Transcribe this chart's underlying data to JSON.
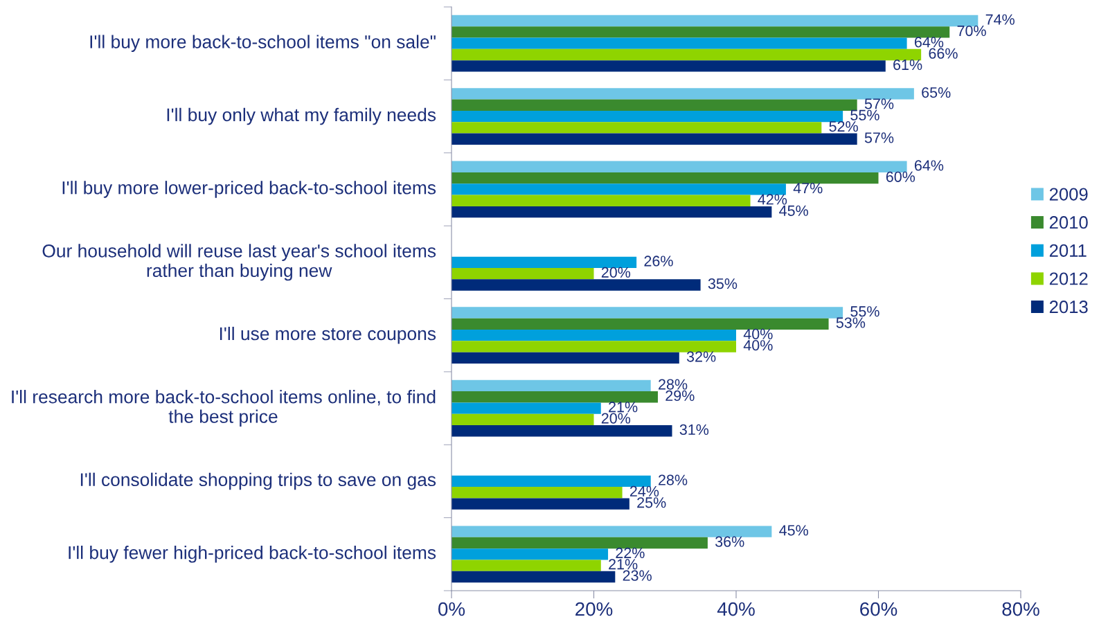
{
  "chart_data": {
    "type": "bar",
    "orientation": "horizontal",
    "categories": [
      "I'll buy more back-to-school items \"on sale\"",
      "I'll buy only what my family needs",
      "I'll buy more lower-priced back-to-school items",
      "Our household will reuse last year's school items rather than buying new",
      "I'll use more store coupons",
      "I'll research more back-to-school items online, to find the best price",
      "I'll consolidate shopping trips to save on gas",
      "I'll buy fewer high-priced back-to-school items"
    ],
    "series": [
      {
        "name": "2009",
        "color": "#6ec6e6",
        "values": [
          74,
          65,
          64,
          null,
          55,
          28,
          null,
          45
        ],
        "value_labels": [
          "74%",
          "65%",
          "64%",
          null,
          "55%",
          "28%",
          null,
          "45%"
        ]
      },
      {
        "name": "2010",
        "color": "#3a8a2e",
        "values": [
          70,
          57,
          60,
          null,
          53,
          29,
          null,
          36
        ],
        "value_labels": [
          "70%",
          "57%",
          "60%",
          null,
          "53%",
          "29%",
          null,
          "36%"
        ]
      },
      {
        "name": "2011",
        "color": "#00a0dc",
        "values": [
          64,
          55,
          47,
          26,
          40,
          21,
          28,
          22
        ],
        "value_labels": [
          "64%",
          "55%",
          "47%",
          "26%",
          "40%",
          "21%",
          "28%",
          "22%"
        ]
      },
      {
        "name": "2012",
        "color": "#8fd400",
        "values": [
          66,
          52,
          42,
          20,
          40,
          20,
          24,
          21
        ],
        "value_labels": [
          "66%",
          "52%",
          "42%",
          "20%",
          "40%",
          "20%",
          "24%",
          "21%"
        ]
      },
      {
        "name": "2013",
        "color": "#002b7a",
        "values": [
          61,
          57,
          45,
          35,
          32,
          31,
          25,
          23
        ],
        "value_labels": [
          "61%",
          "57%",
          "45%",
          "35%",
          "32%",
          "31%",
          "25%",
          "23%"
        ]
      }
    ],
    "xlim": [
      0,
      80
    ],
    "xticks": [
      {
        "value": 0,
        "label": "0%"
      },
      {
        "value": 20,
        "label": "20%"
      },
      {
        "value": 40,
        "label": "40%"
      },
      {
        "value": 60,
        "label": "60%"
      },
      {
        "value": 80,
        "label": "80%"
      }
    ],
    "grid": false,
    "legend": "right"
  }
}
